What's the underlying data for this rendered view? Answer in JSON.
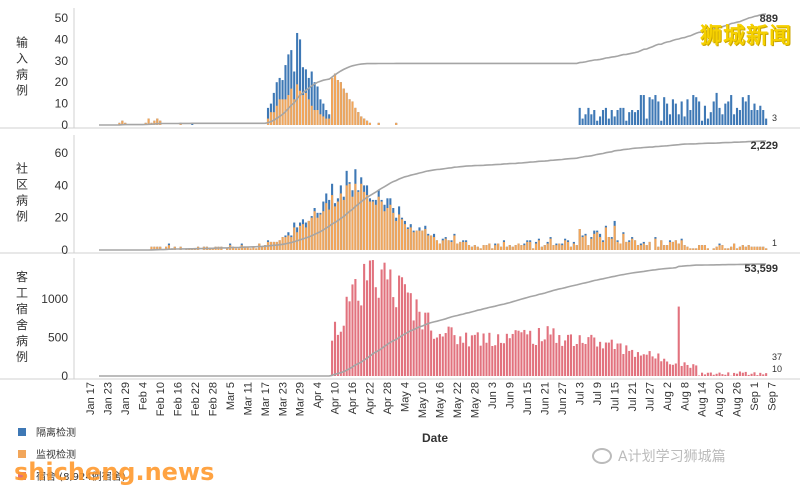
{
  "brand_text": "狮城新闻",
  "watermark_text": "shicheng.news",
  "wechat_text": "A计划学习狮城篇",
  "colors": {
    "imported": "#3e78b5",
    "community": "#f2a65a",
    "dormitory": "#e2727e",
    "cumulative": "#a5a5a5",
    "grid": "#d0d0d0"
  },
  "chart_data": [
    {
      "type": "bar",
      "id": "imported",
      "title": "输入病例",
      "title_chars": [
        "输",
        "入",
        "病",
        "例"
      ],
      "ylim": [
        0,
        50
      ],
      "yticks": [
        0,
        10,
        20,
        30,
        40,
        50
      ],
      "cumulative_label": "889",
      "last_value_label": "3",
      "series": [
        {
          "name": "隔离检测",
          "color_key": "imported",
          "values": [
            0,
            0,
            0,
            0,
            0,
            0,
            0,
            1,
            2,
            1,
            0,
            0,
            0,
            0,
            0,
            0,
            1,
            3,
            1,
            2,
            3,
            2,
            0,
            0,
            0,
            0,
            0,
            0,
            1,
            0,
            0,
            0,
            1,
            0,
            0,
            0,
            0,
            0,
            0,
            0,
            0,
            0,
            0,
            0,
            0,
            0,
            0,
            0,
            0,
            0,
            0,
            0,
            0,
            0,
            0,
            0,
            0,
            0,
            0,
            0,
            0,
            0,
            1,
            1,
            2,
            1,
            1,
            2,
            3,
            4,
            5,
            6,
            9,
            10,
            11,
            13,
            17,
            20,
            23,
            20,
            22,
            24,
            21,
            20,
            17,
            15,
            12,
            11,
            8,
            6,
            4,
            3,
            2,
            1,
            0,
            0,
            1,
            0,
            0,
            0,
            0,
            0,
            1,
            0,
            0,
            0,
            0,
            0,
            0,
            0,
            0,
            0,
            0,
            0,
            0,
            0,
            0,
            0,
            0,
            0,
            0,
            0,
            0,
            0,
            0,
            0,
            0,
            0,
            0,
            0,
            0,
            0,
            0,
            0,
            0,
            0,
            0,
            0,
            0,
            0,
            0,
            0,
            0,
            0,
            0,
            0,
            0,
            0,
            0,
            0,
            0,
            0,
            0,
            0,
            0,
            0,
            0,
            0,
            0,
            0,
            0,
            0,
            0,
            0,
            0,
            0,
            0,
            0,
            0,
            0,
            0,
            0,
            0,
            0,
            0,
            0,
            0,
            0,
            0,
            0,
            0,
            0,
            0,
            0,
            0,
            0,
            0,
            0,
            0,
            0,
            0,
            0,
            0,
            0,
            0,
            0,
            0,
            0,
            0,
            0,
            0,
            0,
            0,
            0,
            0,
            0,
            0,
            0,
            0,
            0,
            0,
            0,
            0,
            0,
            0,
            0,
            0,
            0,
            0,
            0,
            0,
            0,
            0,
            0,
            0,
            0,
            0,
            0,
            0,
            0,
            0,
            0,
            0,
            0,
            0,
            0,
            0,
            0,
            0,
            0,
            0,
            0,
            0,
            0,
            0,
            0,
            0,
            0,
            0,
            0,
            0,
            0,
            0,
            0,
            0,
            0,
            0,
            0,
            0,
            0,
            0
          ]
        },
        {
          "name": "监视检测",
          "color_key": "community",
          "values": [
            0,
            0,
            0,
            0,
            0,
            0,
            0,
            1,
            2,
            1,
            0,
            0,
            0,
            0,
            0,
            0,
            1,
            3,
            1,
            2,
            3,
            2,
            0,
            0,
            0,
            0,
            0,
            0,
            1,
            0,
            0,
            0,
            0,
            0,
            0,
            0,
            0,
            0,
            0,
            0,
            0,
            0,
            0,
            0,
            0,
            0,
            0,
            0,
            0,
            0,
            0,
            0,
            0,
            0,
            0,
            0,
            0,
            0,
            0,
            0,
            0,
            0,
            1,
            1,
            2,
            1,
            1,
            2,
            3,
            4,
            5,
            6,
            9,
            10,
            11,
            13,
            17,
            20,
            23,
            20,
            22,
            24,
            21,
            20,
            17,
            15,
            12,
            11,
            8,
            6,
            4,
            3,
            2,
            1,
            0,
            0,
            1,
            0,
            0,
            0,
            0,
            0,
            1,
            0,
            0,
            0,
            0,
            0,
            0,
            0,
            0,
            0,
            0,
            0,
            0,
            0,
            0,
            0,
            0,
            0,
            0,
            0,
            0,
            0,
            0,
            0,
            0,
            0,
            0,
            0,
            0,
            0,
            0,
            0,
            0,
            0,
            0,
            0,
            0,
            0,
            0,
            0,
            0,
            0,
            0,
            0,
            0,
            0,
            0,
            0,
            0,
            0,
            0,
            0,
            0,
            0,
            0,
            0,
            0,
            0,
            0,
            0,
            0,
            0,
            0,
            0,
            0,
            0,
            0,
            0,
            0,
            0,
            0,
            0,
            0,
            0,
            0,
            0,
            0,
            0,
            0,
            0,
            0,
            0,
            0,
            0,
            0,
            0,
            0,
            0,
            0,
            0,
            0,
            0,
            0,
            0,
            0,
            0,
            0,
            0,
            0,
            0,
            0,
            0,
            0,
            0,
            0,
            0,
            0,
            0,
            0,
            0,
            0,
            0,
            0,
            0,
            0,
            0,
            0,
            0,
            0,
            0,
            0,
            0,
            0,
            0,
            0,
            0,
            0,
            0,
            0,
            0,
            0,
            0,
            0,
            0,
            0,
            0,
            0,
            0,
            0,
            0,
            0,
            0,
            0,
            0,
            0,
            0,
            0,
            0,
            0,
            0,
            0,
            0,
            0,
            0,
            0
          ]
        }
      ]
    },
    {
      "type": "bar",
      "id": "community",
      "title": "社区病例",
      "title_chars": [
        "社",
        "区",
        "病",
        "例"
      ],
      "ylim": [
        0,
        65
      ],
      "yticks": [
        0,
        20,
        40,
        60
      ],
      "cumulative_label": "2,229",
      "last_value_label": "1",
      "series": [
        {
          "name": "隔离检测",
          "color_key": "imported",
          "values": []
        },
        {
          "name": "监视检测",
          "color_key": "community",
          "values": []
        }
      ]
    },
    {
      "type": "bar",
      "id": "dormitory",
      "title": "客工宿舍病例",
      "title_chars": [
        "客",
        "工",
        "宿",
        "舍",
        "病",
        "例"
      ],
      "ylim": [
        0,
        1400
      ],
      "yticks": [
        0,
        500,
        1000
      ],
      "cumulative_label": "53,599",
      "last_value_labels": [
        "37",
        "10"
      ],
      "series": [
        {
          "name": "宿舍",
          "color_key": "dormitory",
          "values": []
        }
      ]
    }
  ],
  "x_axis": {
    "title": "Date",
    "tick_labels": [
      "Jan 17",
      "Jan 23",
      "Jan 29",
      "Feb 4",
      "Feb 10",
      "Feb 16",
      "Feb 22",
      "Feb 28",
      "Mar 5",
      "Mar 11",
      "Mar 17",
      "Mar 23",
      "Mar 29",
      "Apr 4",
      "Apr 10",
      "Apr 16",
      "Apr 22",
      "Apr 28",
      "May 4",
      "May 10",
      "May 16",
      "May 22",
      "May 28",
      "Jun 3",
      "Jun 9",
      "Jun 15",
      "Jun 21",
      "Jun 27",
      "Jul 3",
      "Jul 9",
      "Jul 15",
      "Jul 21",
      "Jul 27",
      "Aug 2",
      "Aug 8",
      "Aug 14",
      "Aug 20",
      "Aug 26",
      "Sep 1",
      "Sep 7"
    ]
  },
  "legend": [
    {
      "label": "隔离检测",
      "color_key": "imported"
    },
    {
      "label": "监视检测",
      "color_key": "community"
    },
    {
      "label": "宿舍 (8,924例宿舍)",
      "color_key": "dormitory"
    }
  ]
}
